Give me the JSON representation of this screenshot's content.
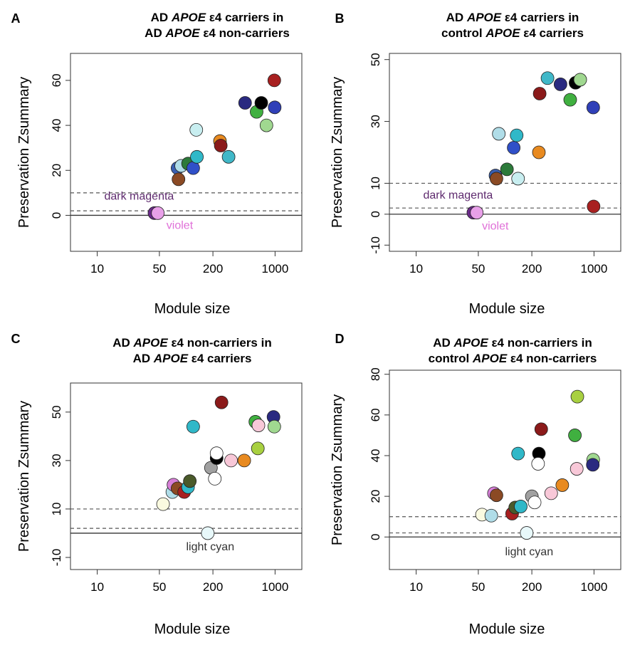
{
  "chart_data": [
    {
      "panel": "A",
      "type": "scatter",
      "title_line1": [
        "AD ",
        "APOE",
        " ε4 carriers in"
      ],
      "title_line2": [
        "AD ",
        "APOE",
        " ε4 non-carriers"
      ],
      "xlabel": "Module size",
      "ylabel": "Preservation Zsummary",
      "x_scale": "log",
      "xlim": [
        5,
        2000
      ],
      "ylim": [
        -16,
        72
      ],
      "xticks": [
        10,
        50,
        200,
        1000
      ],
      "xtick_labels": [
        "10",
        "50",
        "200",
        "1000"
      ],
      "yticks": [
        0,
        20,
        40,
        60
      ],
      "ytick_labels": [
        "0",
        "20",
        "40",
        "60"
      ],
      "thresholds": [
        2,
        10
      ],
      "annotations": [
        {
          "text": "dark magenta",
          "x": 12,
          "y": 7,
          "color": "#5e2a6e"
        },
        {
          "text": "violet",
          "x": 60,
          "y": -6,
          "color": "#e070d8"
        }
      ],
      "points": [
        {
          "x": 44,
          "y": 1,
          "color": "#6b2a8a"
        },
        {
          "x": 48,
          "y": 1,
          "color": "#e8a0e8"
        },
        {
          "x": 80,
          "y": 21,
          "color": "#3a5fb0"
        },
        {
          "x": 82,
          "y": 16,
          "color": "#8b4a24"
        },
        {
          "x": 88,
          "y": 22,
          "color": "#b0dde8"
        },
        {
          "x": 105,
          "y": 23,
          "color": "#2c7a3a"
        },
        {
          "x": 120,
          "y": 21,
          "color": "#3050c8"
        },
        {
          "x": 130,
          "y": 38,
          "color": "#c8eef0"
        },
        {
          "x": 132,
          "y": 26,
          "color": "#30b8c8"
        },
        {
          "x": 240,
          "y": 33,
          "color": "#e88a20"
        },
        {
          "x": 245,
          "y": 31,
          "color": "#8b1a1a"
        },
        {
          "x": 300,
          "y": 26,
          "color": "#40b8c8"
        },
        {
          "x": 460,
          "y": 50,
          "color": "#2a2a80"
        },
        {
          "x": 620,
          "y": 46,
          "color": "#40b040"
        },
        {
          "x": 700,
          "y": 50,
          "color": "#000000"
        },
        {
          "x": 800,
          "y": 40,
          "color": "#a0d890"
        },
        {
          "x": 980,
          "y": 60,
          "color": "#a82020"
        },
        {
          "x": 990,
          "y": 48,
          "color": "#3040b8"
        }
      ]
    },
    {
      "panel": "B",
      "type": "scatter",
      "title_line1": [
        "AD ",
        "APOE",
        " ε4 carriers in"
      ],
      "title_line2": [
        "control ",
        "APOE",
        " ε4 carriers"
      ],
      "xlabel": "Module size",
      "ylabel": "Preservation Zsummary",
      "x_scale": "log",
      "xlim": [
        5,
        2000
      ],
      "ylim": [
        -12,
        52
      ],
      "xticks": [
        10,
        50,
        200,
        1000
      ],
      "xtick_labels": [
        "10",
        "50",
        "200",
        "1000"
      ],
      "yticks": [
        -10,
        0,
        10,
        30,
        50
      ],
      "ytick_labels": [
        "-10",
        "0",
        "10",
        "30",
        "50"
      ],
      "thresholds": [
        2,
        10
      ],
      "annotations": [
        {
          "text": "dark magenta",
          "x": 12,
          "y": 5,
          "color": "#5e2a6e"
        },
        {
          "text": "violet",
          "x": 55,
          "y": -5,
          "color": "#e070d8"
        }
      ],
      "points": [
        {
          "x": 44,
          "y": 0.5,
          "color": "#6b2a8a"
        },
        {
          "x": 48,
          "y": 0.5,
          "color": "#e8a0e8"
        },
        {
          "x": 78,
          "y": 12.5,
          "color": "#3a5fb0"
        },
        {
          "x": 80,
          "y": 11.5,
          "color": "#8b4a24"
        },
        {
          "x": 85,
          "y": 26,
          "color": "#b0dde8"
        },
        {
          "x": 105,
          "y": 14.5,
          "color": "#2c7a3a"
        },
        {
          "x": 125,
          "y": 21.5,
          "color": "#3050c8"
        },
        {
          "x": 135,
          "y": 25.5,
          "color": "#30b8c8"
        },
        {
          "x": 140,
          "y": 11.5,
          "color": "#c8eef0"
        },
        {
          "x": 240,
          "y": 20,
          "color": "#e88a20"
        },
        {
          "x": 245,
          "y": 39,
          "color": "#8b1a1a"
        },
        {
          "x": 300,
          "y": 44,
          "color": "#40b8c8"
        },
        {
          "x": 420,
          "y": 42,
          "color": "#2a2a80"
        },
        {
          "x": 540,
          "y": 37,
          "color": "#40b040"
        },
        {
          "x": 620,
          "y": 42.5,
          "color": "#000000"
        },
        {
          "x": 700,
          "y": 43.5,
          "color": "#a0d890"
        },
        {
          "x": 980,
          "y": 34.5,
          "color": "#3040b8"
        },
        {
          "x": 990,
          "y": 2.5,
          "color": "#a82020"
        }
      ]
    },
    {
      "panel": "C",
      "type": "scatter",
      "title_line1": [
        "AD ",
        "APOE",
        " ε4 non-carriers in"
      ],
      "title_line2": [
        "AD ",
        "APOE",
        " ε4 carriers"
      ],
      "xlabel": "Module size",
      "ylabel": "Preservation Zsummary",
      "x_scale": "log",
      "xlim": [
        5,
        2000
      ],
      "ylim": [
        -15,
        62
      ],
      "xticks": [
        10,
        50,
        200,
        1000
      ],
      "xtick_labels": [
        "10",
        "50",
        "200",
        "1000"
      ],
      "yticks": [
        -10,
        10,
        30,
        50
      ],
      "ytick_labels": [
        "-10",
        "10",
        "30",
        "50"
      ],
      "thresholds": [
        2,
        10
      ],
      "annotations": [
        {
          "text": "light cyan",
          "x": 100,
          "y": -7,
          "color": "#333333"
        }
      ],
      "points": [
        {
          "x": 55,
          "y": 12,
          "color": "#fafae0"
        },
        {
          "x": 70,
          "y": 17,
          "color": "#b0dde8"
        },
        {
          "x": 72,
          "y": 20,
          "color": "#d880d8"
        },
        {
          "x": 80,
          "y": 18.5,
          "color": "#8b4a24"
        },
        {
          "x": 95,
          "y": 17,
          "color": "#a82020"
        },
        {
          "x": 105,
          "y": 19,
          "color": "#30b8c8"
        },
        {
          "x": 110,
          "y": 21.5,
          "color": "#4a5a2a"
        },
        {
          "x": 120,
          "y": 44,
          "color": "#30b8c8"
        },
        {
          "x": 175,
          "y": 0,
          "color": "#e8f8fa"
        },
        {
          "x": 190,
          "y": 27,
          "color": "#a0a0a0"
        },
        {
          "x": 210,
          "y": 22.5,
          "color": "#ffffff"
        },
        {
          "x": 220,
          "y": 31,
          "color": "#000000"
        },
        {
          "x": 220,
          "y": 33,
          "color": "#ffffff"
        },
        {
          "x": 250,
          "y": 54,
          "color": "#8b1a1a"
        },
        {
          "x": 320,
          "y": 30,
          "color": "#f8c8d8"
        },
        {
          "x": 450,
          "y": 30,
          "color": "#e88a20"
        },
        {
          "x": 600,
          "y": 46,
          "color": "#40b040"
        },
        {
          "x": 640,
          "y": 35,
          "color": "#a8d040"
        },
        {
          "x": 650,
          "y": 44.5,
          "color": "#f8c8d8"
        },
        {
          "x": 960,
          "y": 48,
          "color": "#2a2a80"
        },
        {
          "x": 980,
          "y": 44,
          "color": "#a0d890"
        }
      ]
    },
    {
      "panel": "D",
      "type": "scatter",
      "title_line1": [
        "AD ",
        "APOE",
        " ε4 non-carriers in"
      ],
      "title_line2": [
        "control ",
        "APOE",
        " ε4 non-carriers"
      ],
      "xlabel": "Module size",
      "ylabel": "Preservation Zsummary",
      "x_scale": "log",
      "xlim": [
        5,
        2000
      ],
      "ylim": [
        -16,
        82
      ],
      "xticks": [
        10,
        50,
        200,
        1000
      ],
      "xtick_labels": [
        "10",
        "50",
        "200",
        "1000"
      ],
      "yticks": [
        0,
        20,
        40,
        60,
        80
      ],
      "ytick_labels": [
        "0",
        "20",
        "40",
        "60",
        "80"
      ],
      "thresholds": [
        2,
        10
      ],
      "annotations": [
        {
          "text": "light cyan",
          "x": 100,
          "y": -9,
          "color": "#333333"
        }
      ],
      "points": [
        {
          "x": 55,
          "y": 11,
          "color": "#fafae0"
        },
        {
          "x": 70,
          "y": 10.5,
          "color": "#b0dde8"
        },
        {
          "x": 75,
          "y": 21.5,
          "color": "#d880d8"
        },
        {
          "x": 80,
          "y": 20.5,
          "color": "#8b4a24"
        },
        {
          "x": 120,
          "y": 11.5,
          "color": "#a82020"
        },
        {
          "x": 130,
          "y": 14.5,
          "color": "#4a5a2a"
        },
        {
          "x": 140,
          "y": 41,
          "color": "#30b8c8"
        },
        {
          "x": 150,
          "y": 15,
          "color": "#30b8c8"
        },
        {
          "x": 175,
          "y": 2,
          "color": "#e8f8fa"
        },
        {
          "x": 200,
          "y": 20,
          "color": "#a0a0a0"
        },
        {
          "x": 215,
          "y": 17,
          "color": "#ffffff"
        },
        {
          "x": 240,
          "y": 41,
          "color": "#000000"
        },
        {
          "x": 235,
          "y": 36,
          "color": "#ffffff"
        },
        {
          "x": 255,
          "y": 53,
          "color": "#8b1a1a"
        },
        {
          "x": 330,
          "y": 21.5,
          "color": "#f8c8d8"
        },
        {
          "x": 440,
          "y": 25.5,
          "color": "#e88a20"
        },
        {
          "x": 610,
          "y": 50,
          "color": "#40b040"
        },
        {
          "x": 640,
          "y": 33.5,
          "color": "#f8c8d8"
        },
        {
          "x": 650,
          "y": 69,
          "color": "#a8d040"
        },
        {
          "x": 980,
          "y": 38,
          "color": "#a0d890"
        },
        {
          "x": 970,
          "y": 35.5,
          "color": "#2a2a80"
        }
      ]
    }
  ]
}
